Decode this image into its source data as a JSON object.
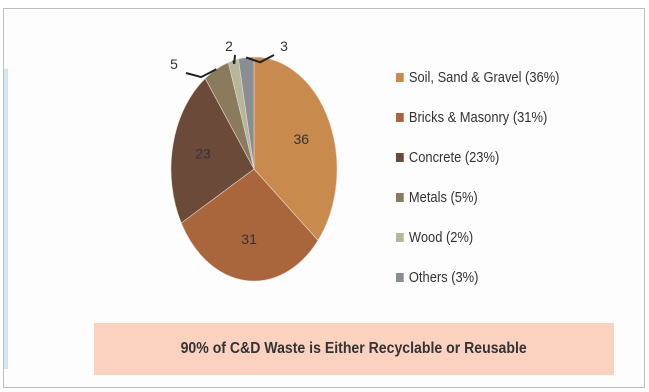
{
  "chart_data": {
    "type": "pie",
    "categories": [
      "Soil, Sand & Gravel",
      "Bricks & Masonry",
      "Concrete",
      "Metals",
      "Wood",
      "Others"
    ],
    "values": [
      36,
      31,
      23,
      5,
      2,
      3
    ],
    "data_labels": [
      "36",
      "31",
      "23",
      "5",
      "2",
      "3"
    ],
    "legend": [
      "Soil, Sand & Gravel (36%)",
      "Bricks & Masonry (31%)",
      "Concrete (23%)",
      "Metals (5%)",
      "Wood (2%)",
      "Others (3%)"
    ],
    "colors": [
      "#c98a4e",
      "#a9653c",
      "#6b4a3a",
      "#8a7b5e",
      "#b6b79a",
      "#8a8d91"
    ],
    "start_angle": "12 o'clock",
    "direction": "clockwise",
    "legend_position": "right"
  },
  "footer": {
    "text": "90% of C&D Waste is Either Recyclable or Reusable"
  }
}
